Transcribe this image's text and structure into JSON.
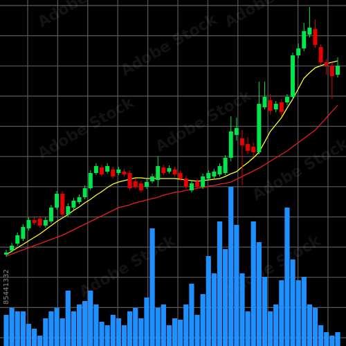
{
  "chart_data": {
    "type": "candlestick",
    "watermark": "Adobe Stock",
    "image_id": "85441332",
    "up_color": "#00e64d",
    "down_color": "#e60000",
    "volume_color": "#1e90ff",
    "grid": true,
    "ylim": [
      -12,
      488
    ],
    "yticks": [
      0,
      43.6,
      87.3,
      130.9,
      174.5,
      218.2,
      261.8,
      305.5,
      349.1,
      392.7,
      436.4,
      480
    ],
    "y2lim": [
      0,
      500
    ],
    "open": [
      120,
      126,
      136,
      143,
      158,
      170,
      172,
      162,
      168,
      188,
      208,
      178,
      188,
      196,
      203,
      216,
      238,
      246,
      240,
      243,
      238,
      240,
      238,
      226,
      223,
      218,
      226,
      228,
      246,
      240,
      243,
      238,
      230,
      213,
      226,
      218,
      230,
      233,
      236,
      238,
      260,
      293,
      288,
      280,
      276,
      268,
      333,
      343,
      330,
      340,
      340,
      348,
      408,
      418,
      438,
      446,
      420,
      398,
      393,
      380
    ],
    "high": [
      127,
      137,
      152,
      164,
      174,
      174,
      176,
      174,
      192,
      212,
      212,
      194,
      202,
      207,
      220,
      242,
      252,
      250,
      252,
      247,
      247,
      244,
      242,
      230,
      227,
      229,
      237,
      262,
      250,
      249,
      247,
      242,
      234,
      227,
      230,
      237,
      242,
      244,
      252,
      264,
      320,
      318,
      300,
      290,
      282,
      370,
      370,
      352,
      342,
      345,
      352,
      412,
      425,
      455,
      478,
      460,
      424,
      403,
      398,
      405
    ],
    "low": [
      117,
      123,
      133,
      140,
      155,
      163,
      159,
      159,
      165,
      185,
      175,
      175,
      185,
      193,
      200,
      213,
      235,
      233,
      237,
      230,
      235,
      233,
      213,
      215,
      210,
      215,
      223,
      218,
      235,
      237,
      233,
      227,
      215,
      210,
      215,
      215,
      227,
      230,
      233,
      235,
      255,
      285,
      220,
      265,
      262,
      265,
      330,
      322,
      326,
      320,
      336,
      344,
      404,
      414,
      434,
      419,
      394,
      380,
      345,
      376
    ],
    "close": [
      123,
      133,
      148,
      160,
      170,
      166,
      162,
      170,
      188,
      208,
      178,
      190,
      198,
      203,
      216,
      238,
      248,
      236,
      248,
      233,
      243,
      236,
      216,
      218,
      213,
      225,
      233,
      248,
      238,
      245,
      236,
      230,
      218,
      223,
      218,
      233,
      238,
      240,
      248,
      260,
      298,
      303,
      278,
      270,
      268,
      338,
      348,
      328,
      338,
      326,
      348,
      408,
      418,
      443,
      448,
      423,
      398,
      393,
      378,
      393
    ],
    "volume": [
      45,
      55,
      50,
      50,
      32,
      25,
      15,
      40,
      50,
      55,
      40,
      80,
      50,
      60,
      65,
      80,
      60,
      35,
      30,
      45,
      40,
      30,
      50,
      55,
      40,
      70,
      170,
      55,
      60,
      30,
      40,
      38,
      60,
      90,
      45,
      75,
      130,
      105,
      180,
      140,
      230,
      175,
      105,
      50,
      180,
      150,
      100,
      50,
      60,
      95,
      200,
      125,
      95,
      100,
      60,
      55,
      30,
      20,
      15,
      20
    ],
    "moving_averages": [
      {
        "color": "#ffff33",
        "values": [
          120,
          125,
          130,
          135,
          140,
          145,
          150,
          156,
          162,
          168,
          173,
          178,
          184,
          189,
          195,
          200,
          206,
          211,
          217,
          222,
          225,
          227,
          229,
          231,
          231,
          230,
          230,
          230,
          230,
          230,
          230,
          229,
          228,
          227,
          226,
          227,
          228,
          229,
          230,
          233,
          237,
          240,
          247,
          253,
          260,
          268,
          283,
          298,
          308,
          318,
          332,
          345,
          360,
          375,
          383,
          390,
          393,
          396,
          398,
          400
        ]
      },
      {
        "color": "#e62020",
        "values": [
          118,
          121,
          124,
          127,
          130,
          133,
          136,
          139,
          142,
          145,
          148,
          152,
          156,
          160,
          164,
          168,
          172,
          176,
          180,
          184,
          188,
          190,
          192,
          195,
          197,
          199,
          201,
          203,
          206,
          208,
          210,
          211,
          213,
          214,
          216,
          217,
          219,
          220,
          222,
          223,
          225,
          229,
          233,
          237,
          241,
          245,
          250,
          255,
          260,
          265,
          270,
          276,
          282,
          288,
          294,
          300,
          309,
          318,
          327,
          336
        ]
      }
    ]
  }
}
